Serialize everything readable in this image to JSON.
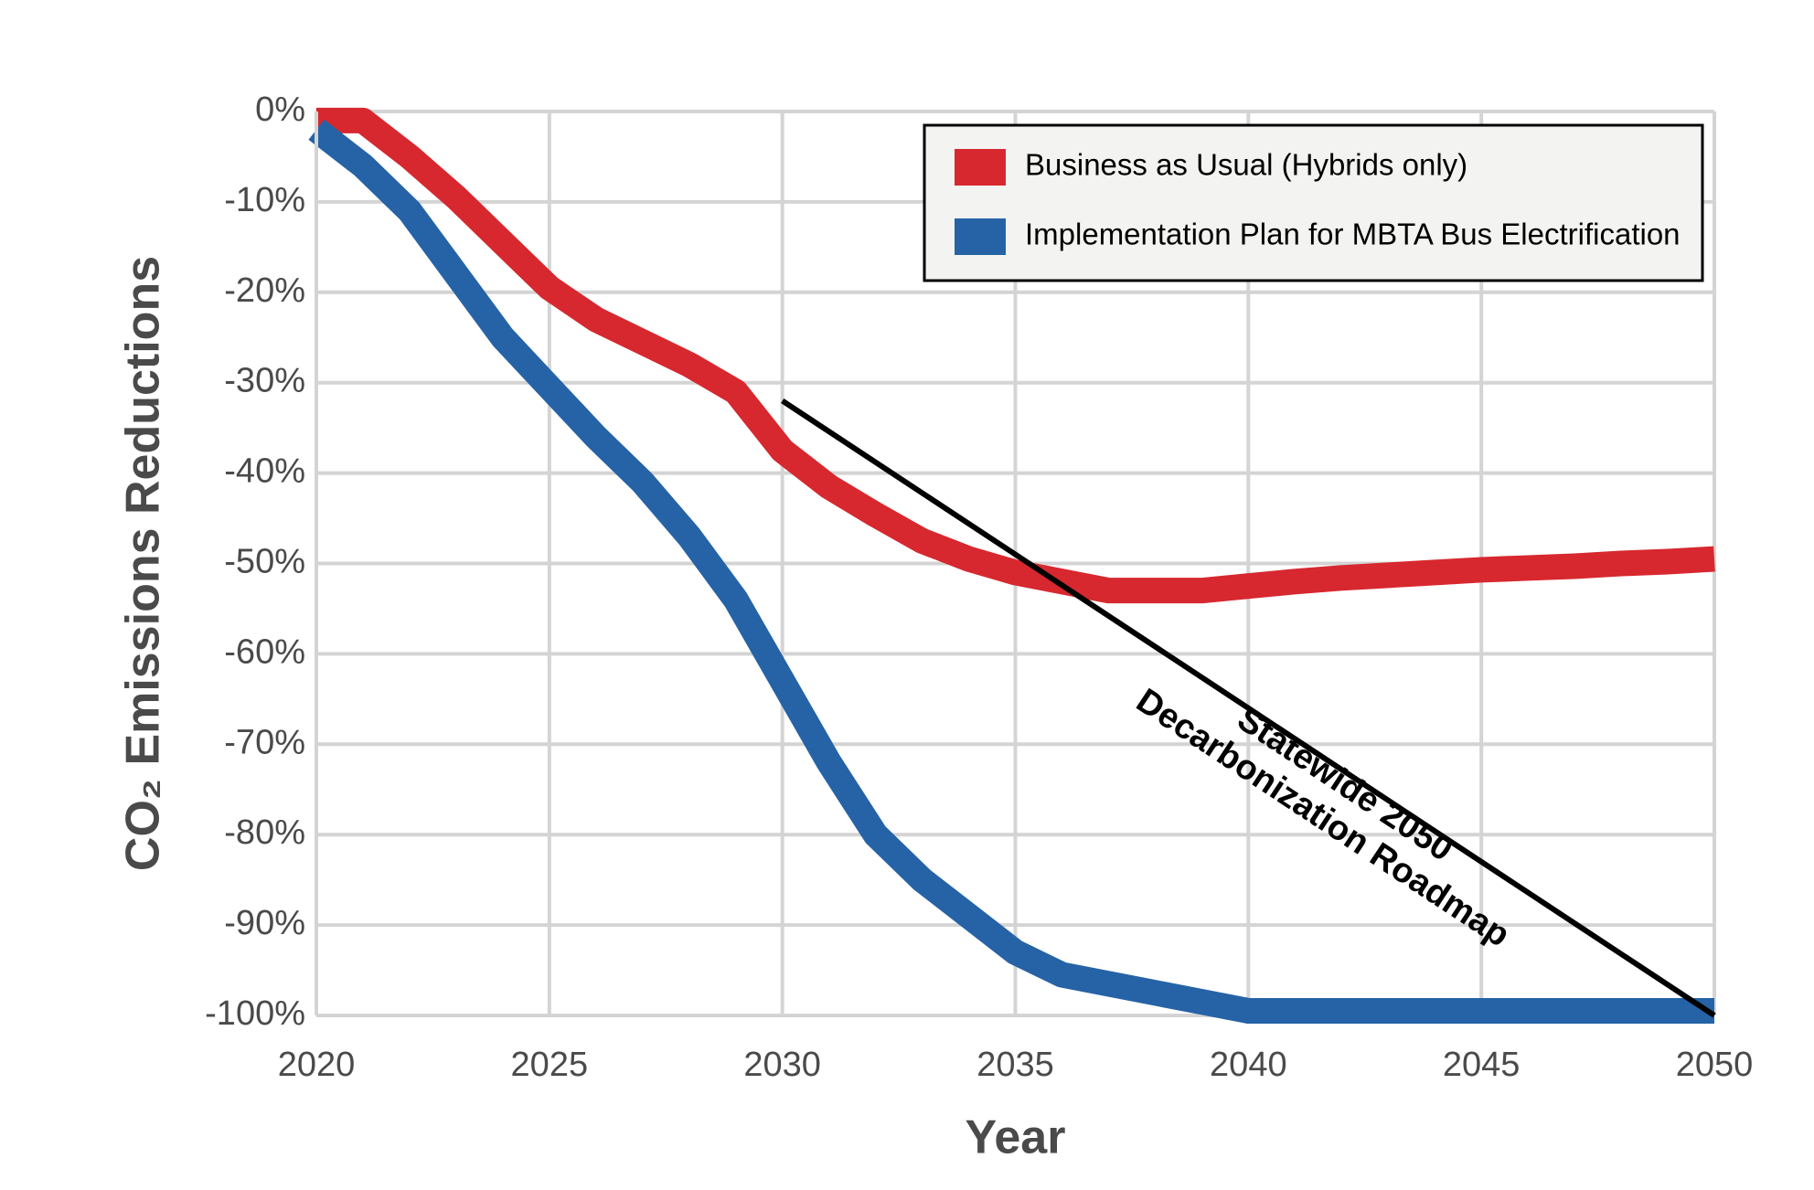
{
  "chart_data": {
    "type": "line",
    "x": [
      2020,
      2021,
      2022,
      2023,
      2024,
      2025,
      2026,
      2027,
      2028,
      2029,
      2030,
      2031,
      2032,
      2033,
      2034,
      2035,
      2036,
      2037,
      2038,
      2039,
      2040,
      2041,
      2042,
      2043,
      2044,
      2045,
      2046,
      2047,
      2048,
      2049,
      2050
    ],
    "series": [
      {
        "name": "Business as Usual (Hybrids only)",
        "color": "#d7282f",
        "values": [
          -1,
          -1,
          -5,
          -9.5,
          -14.5,
          -19.5,
          -23,
          -25.5,
          -28,
          -31,
          -37.5,
          -41.5,
          -44.6,
          -47.5,
          -49.5,
          -51,
          -52,
          -53,
          -53,
          -53,
          -52.5,
          -52,
          -51.6,
          -51.3,
          -51,
          -50.7,
          -50.5,
          -50.3,
          -50,
          -49.8,
          -49.5
        ]
      },
      {
        "name": "Implementation Plan for MBTA Bus Electrification",
        "color": "#2563a6",
        "values": [
          -2,
          -6,
          -11,
          -18,
          -25,
          -30.5,
          -36,
          -41,
          -47,
          -54,
          -63,
          -72,
          -80,
          -85,
          -89,
          -93,
          -95.5,
          -96.5,
          -97.5,
          -98.5,
          -99.5,
          -99.5,
          -99.5,
          -99.5,
          -99.5,
          -99.5,
          -99.5,
          -99.5,
          -99.5,
          -99.5,
          -99.5
        ]
      }
    ],
    "roadmap": {
      "label": [
        "Statewide 2050",
        "Decarbonization Roadmap"
      ],
      "x": [
        2030,
        2050
      ],
      "values": [
        -32,
        -100
      ],
      "color": "#000000"
    },
    "xlabel": "Year",
    "ylabel": "CO₂ Emissions Reductions",
    "xlim": [
      2020,
      2050
    ],
    "xticks": [
      2020,
      2025,
      2030,
      2035,
      2040,
      2045,
      2050
    ],
    "ylim": [
      -100,
      0
    ],
    "yticks": [
      {
        "value": 0,
        "label": "0%"
      },
      {
        "value": -10,
        "label": "-10%"
      },
      {
        "value": -20,
        "label": "-20%"
      },
      {
        "value": -30,
        "label": "-30%"
      },
      {
        "value": -40,
        "label": "-40%"
      },
      {
        "value": -50,
        "label": "-50%"
      },
      {
        "value": -60,
        "label": "-60%"
      },
      {
        "value": -70,
        "label": "-70%"
      },
      {
        "value": -80,
        "label": "-80%"
      },
      {
        "value": -90,
        "label": "-90%"
      },
      {
        "value": -100,
        "label": "-100%"
      }
    ],
    "grid": true,
    "legend": "top-right"
  }
}
